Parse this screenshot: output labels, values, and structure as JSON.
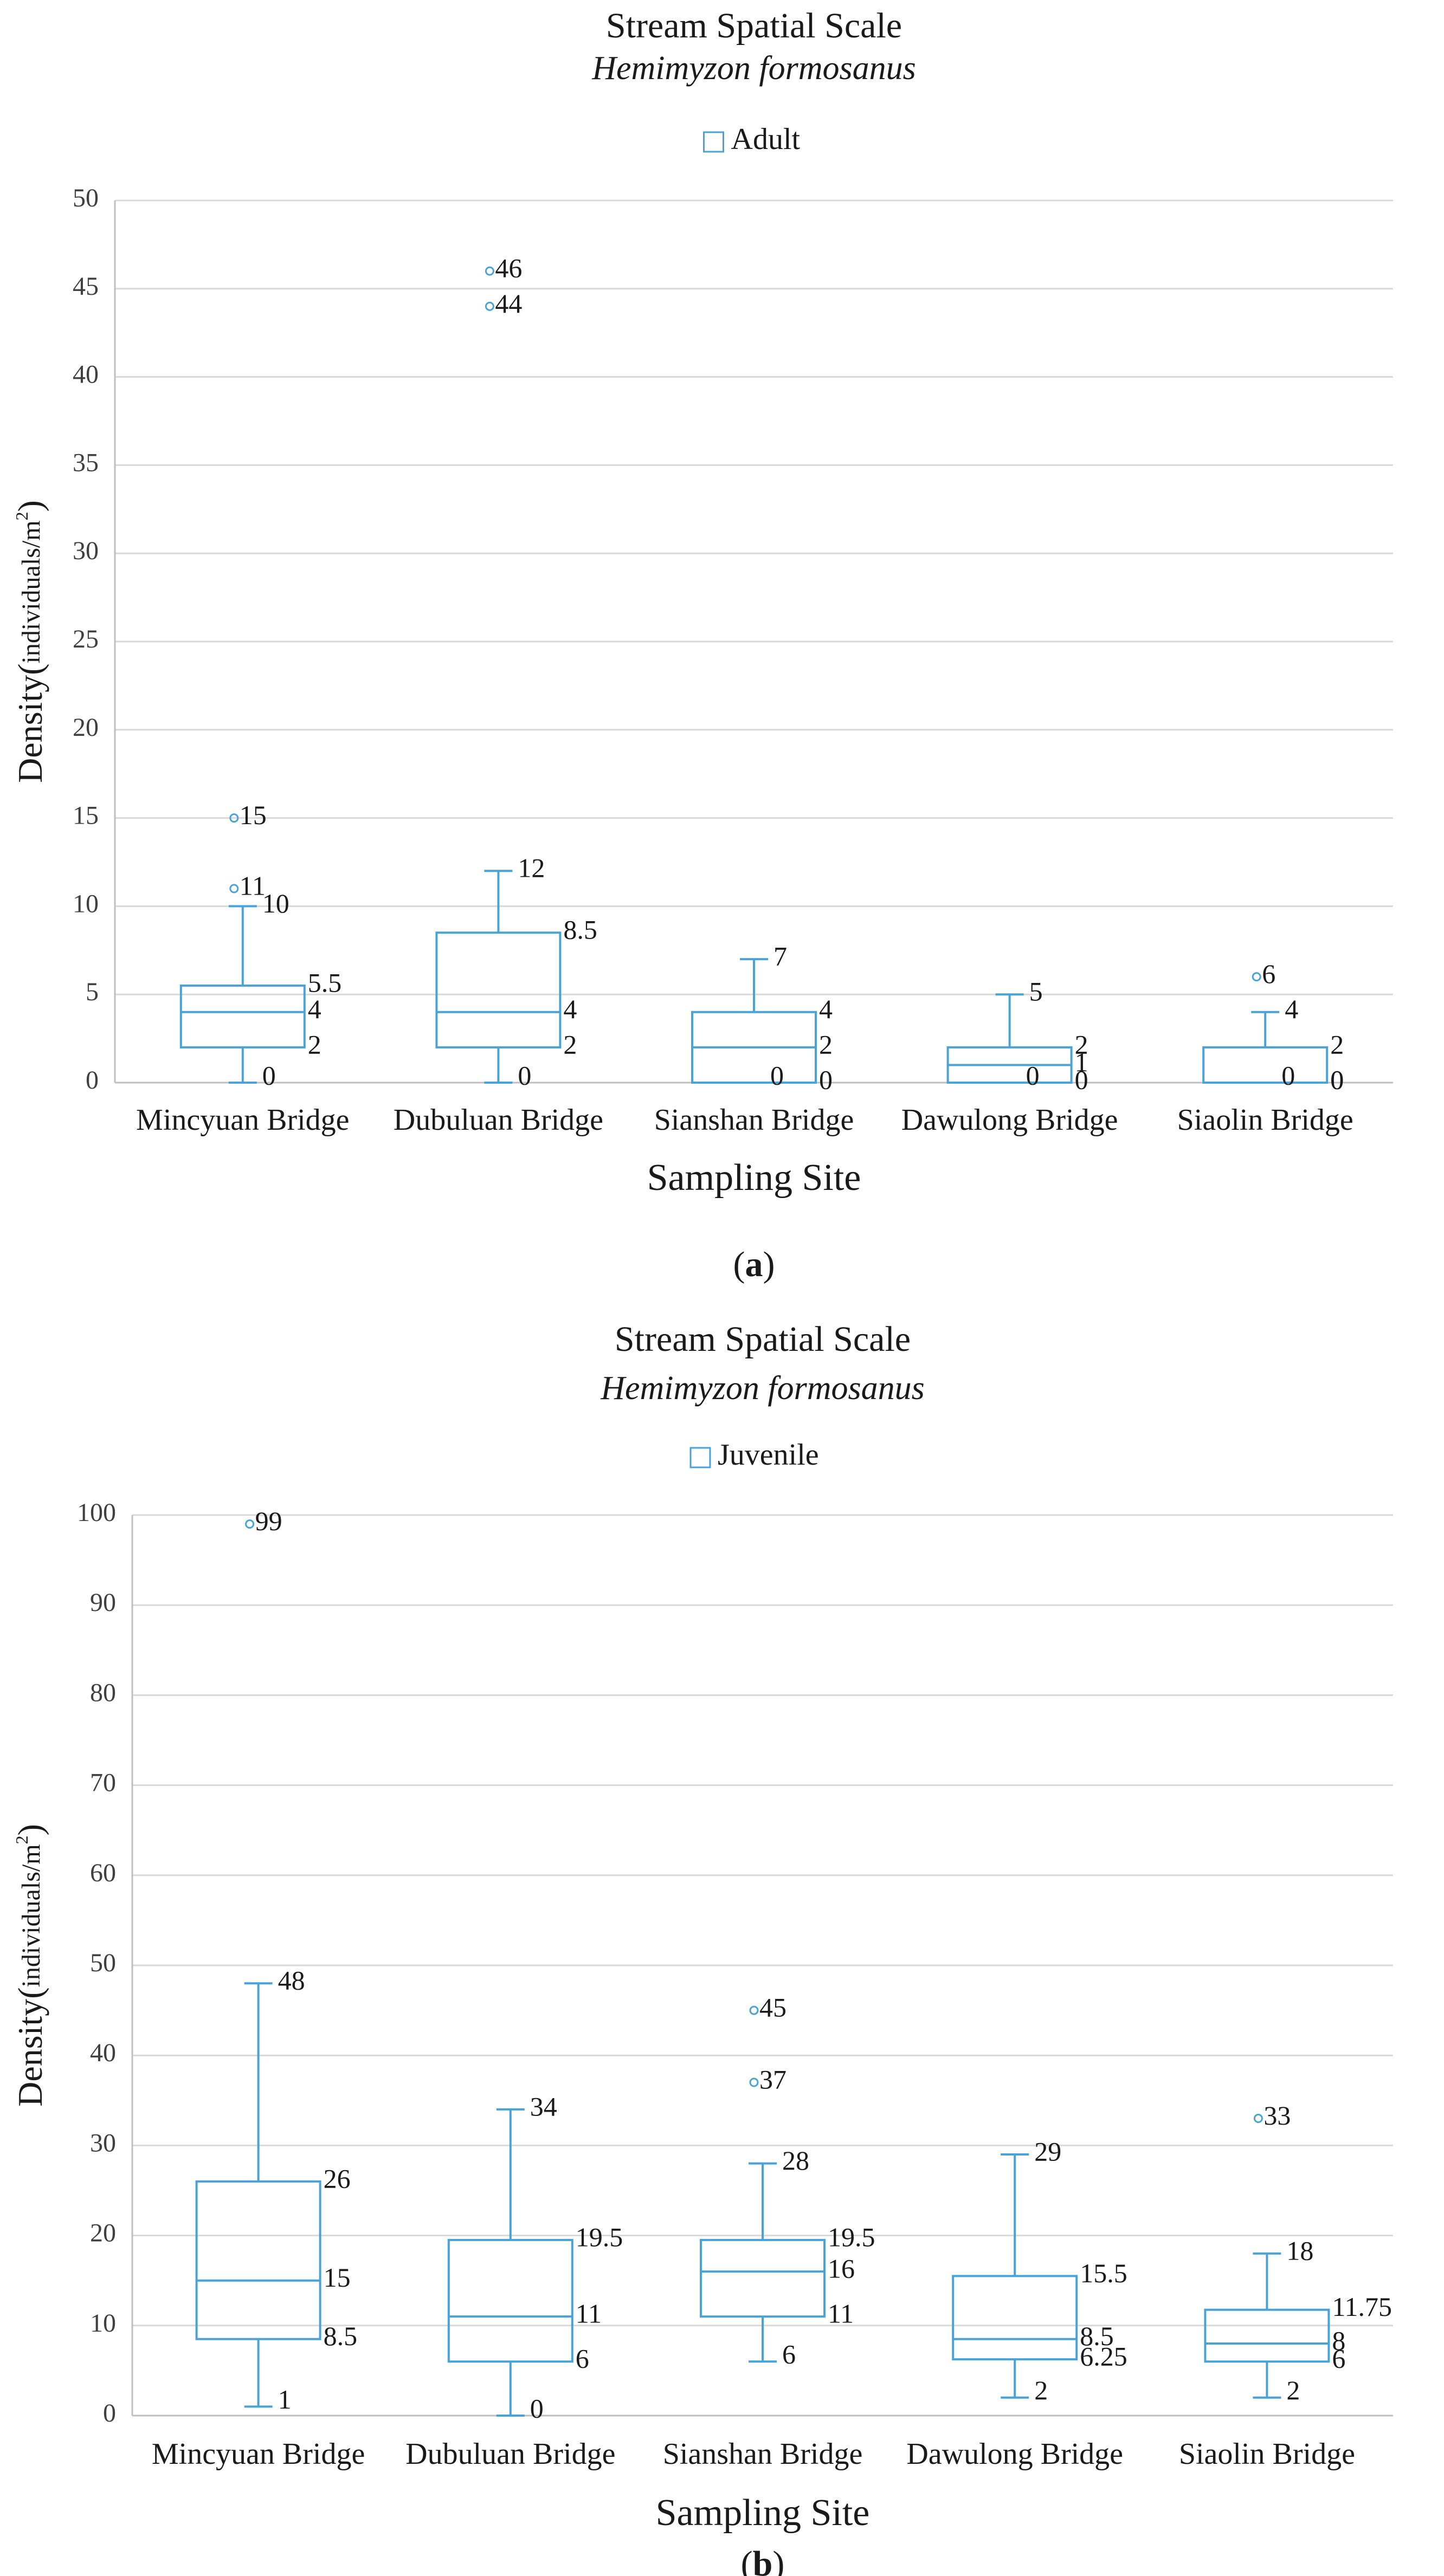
{
  "colors": {
    "box": "#4aa3d6",
    "grid": "#d9d9d9",
    "axis": "#bfbfbf",
    "text": "#1a1a1a",
    "tick_text": "#404040"
  },
  "legend_icon": "empty-square-icon",
  "chart_data": [
    {
      "type": "box",
      "panel_label": "a",
      "title": "Stream Spatial Scale",
      "subtitle": "Hemimyzon formosanus",
      "legend": "Adult",
      "xlabel": "Sampling Site",
      "ylabel_main": "Density(",
      "ylabel_small": "individuals/m",
      "ylabel_sup": "2",
      "ylabel_end": ")",
      "ylim": [
        0,
        50
      ],
      "yticks": [
        0,
        5,
        10,
        15,
        20,
        25,
        30,
        35,
        40,
        45,
        50
      ],
      "grid": true,
      "categories": [
        "Mincyuan Bridge",
        "Dubuluan Bridge",
        "Sianshan Bridge",
        "Dawulong Bridge",
        "Siaolin Bridge"
      ],
      "boxes": [
        {
          "min": 0,
          "q1": 2,
          "median": 4,
          "q3": 5.5,
          "max": 10,
          "outliers": [
            11,
            15
          ],
          "labels": {
            "min": "0",
            "q1": "2",
            "median": "4",
            "q3": "5.5",
            "max": "10",
            "outliers": [
              "11",
              "15"
            ]
          }
        },
        {
          "min": 0,
          "q1": 2,
          "median": 4,
          "q3": 8.5,
          "max": 12,
          "outliers": [
            44,
            46
          ],
          "labels": {
            "min": "0",
            "q1": "2",
            "median": "4",
            "q3": "8.5",
            "max": "12",
            "outliers": [
              "44",
              "46"
            ]
          }
        },
        {
          "min": 0,
          "q1": 0,
          "median": 2,
          "q3": 4,
          "max": 7,
          "outliers": [],
          "labels": {
            "min": "0",
            "q1": "0",
            "median": "2",
            "q3": "4",
            "max": "7",
            "outliers": []
          }
        },
        {
          "min": 0,
          "q1": 0,
          "median": 1,
          "q3": 2,
          "max": 5,
          "outliers": [],
          "labels": {
            "min": "0",
            "q1": "0",
            "median": "1",
            "q3": "2",
            "max": "5",
            "outliers": []
          }
        },
        {
          "min": 0,
          "q1": 0,
          "median": 0,
          "q3": 2,
          "max": 4,
          "outliers": [
            6
          ],
          "labels": {
            "min": "0",
            "q1": "0",
            "median": "0",
            "q3": "2",
            "max": "4",
            "outliers": [
              "6"
            ]
          }
        }
      ]
    },
    {
      "type": "box",
      "panel_label": "b",
      "title": "Stream Spatial Scale",
      "subtitle": "Hemimyzon formosanus",
      "legend": "Juvenile",
      "xlabel": "Sampling Site",
      "ylabel_main": "Density(",
      "ylabel_small": "individuals/m",
      "ylabel_sup": "2",
      "ylabel_end": ")",
      "ylim": [
        0,
        100
      ],
      "yticks": [
        0,
        10,
        20,
        30,
        40,
        50,
        60,
        70,
        80,
        90,
        100
      ],
      "grid": true,
      "categories": [
        "Mincyuan Bridge",
        "Dubuluan Bridge",
        "Sianshan Bridge",
        "Dawulong Bridge",
        "Siaolin Bridge"
      ],
      "boxes": [
        {
          "min": 1,
          "q1": 8.5,
          "median": 15,
          "q3": 26,
          "max": 48,
          "outliers": [
            99
          ],
          "labels": {
            "min": "1",
            "q1": "8.5",
            "median": "15",
            "q3": "26",
            "max": "48",
            "outliers": [
              "99"
            ]
          }
        },
        {
          "min": 0,
          "q1": 6,
          "median": 11,
          "q3": 19.5,
          "max": 34,
          "outliers": [],
          "labels": {
            "min": "0",
            "q1": "6",
            "median": "11",
            "q3": "19.5",
            "max": "34",
            "outliers": []
          }
        },
        {
          "min": 6,
          "q1": 11,
          "median": 16,
          "q3": 19.5,
          "max": 28,
          "outliers": [
            37,
            45
          ],
          "labels": {
            "min": "6",
            "q1": "11",
            "median": "16",
            "q3": "19.5",
            "max": "28",
            "outliers": [
              "37",
              "45"
            ]
          }
        },
        {
          "min": 2,
          "q1": 6.25,
          "median": 8.5,
          "q3": 15.5,
          "max": 29,
          "outliers": [],
          "labels": {
            "min": "2",
            "q1": "6.25",
            "median": "8.5",
            "q3": "15.5",
            "max": "29",
            "outliers": []
          }
        },
        {
          "min": 2,
          "q1": 6,
          "median": 8,
          "q3": 11.75,
          "max": 18,
          "outliers": [
            33
          ],
          "labels": {
            "min": "2",
            "q1": "6",
            "median": "8",
            "q3": "11.75",
            "max": "18",
            "outliers": [
              "33"
            ]
          }
        }
      ]
    }
  ]
}
